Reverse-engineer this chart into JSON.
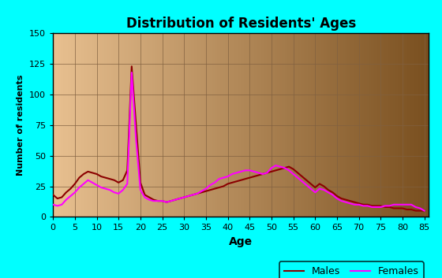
{
  "title": "Distribution of Residents' Ages",
  "xlabel": "Age",
  "ylabel": "Number of residents",
  "xlim": [
    0,
    86
  ],
  "ylim": [
    0,
    150
  ],
  "xticks": [
    0,
    5,
    10,
    15,
    20,
    25,
    30,
    35,
    40,
    45,
    50,
    55,
    60,
    65,
    70,
    75,
    80,
    85
  ],
  "yticks": [
    0,
    25,
    50,
    75,
    100,
    125,
    150
  ],
  "background_outer": "#00FFFF",
  "bg_color_left": "#E8C090",
  "bg_color_right": "#7A5020",
  "male_color": "#8B0000",
  "female_color": "#FF00FF",
  "legend_bg": "#00FFFF",
  "legend_edge": "#000000",
  "grid_color": "#806040",
  "ages": [
    0,
    1,
    2,
    3,
    4,
    5,
    6,
    7,
    8,
    9,
    10,
    11,
    12,
    13,
    14,
    15,
    16,
    17,
    18,
    19,
    20,
    21,
    22,
    23,
    24,
    25,
    26,
    27,
    28,
    29,
    30,
    31,
    32,
    33,
    34,
    35,
    36,
    37,
    38,
    39,
    40,
    41,
    42,
    43,
    44,
    45,
    46,
    47,
    48,
    49,
    50,
    51,
    52,
    53,
    54,
    55,
    56,
    57,
    58,
    59,
    60,
    61,
    62,
    63,
    64,
    65,
    66,
    67,
    68,
    69,
    70,
    71,
    72,
    73,
    74,
    75,
    76,
    77,
    78,
    79,
    80,
    81,
    82,
    83,
    84,
    85
  ],
  "values_male": [
    18,
    15,
    16,
    20,
    23,
    27,
    32,
    35,
    37,
    36,
    35,
    33,
    32,
    31,
    30,
    28,
    30,
    38,
    123,
    75,
    28,
    18,
    16,
    14,
    13,
    13,
    12,
    13,
    14,
    15,
    16,
    17,
    18,
    19,
    20,
    21,
    22,
    23,
    24,
    25,
    27,
    28,
    29,
    30,
    31,
    32,
    33,
    34,
    35,
    36,
    37,
    38,
    39,
    40,
    41,
    39,
    36,
    33,
    30,
    27,
    24,
    27,
    25,
    22,
    20,
    17,
    15,
    14,
    13,
    12,
    11,
    10,
    10,
    9,
    9,
    9,
    8,
    8,
    7,
    7,
    7,
    6,
    6,
    5,
    5,
    5
  ],
  "values_female": [
    10,
    9,
    10,
    14,
    17,
    20,
    24,
    27,
    30,
    28,
    26,
    24,
    23,
    22,
    20,
    19,
    22,
    27,
    118,
    63,
    22,
    16,
    14,
    13,
    13,
    13,
    12,
    13,
    14,
    15,
    16,
    17,
    18,
    19,
    21,
    23,
    26,
    28,
    31,
    32,
    33,
    35,
    36,
    37,
    38,
    38,
    37,
    36,
    35,
    36,
    40,
    42,
    41,
    40,
    38,
    35,
    32,
    29,
    26,
    23,
    20,
    23,
    22,
    20,
    18,
    15,
    13,
    12,
    11,
    10,
    10,
    9,
    9,
    8,
    8,
    8,
    9,
    9,
    10,
    10,
    10,
    10,
    10,
    8,
    7,
    5
  ]
}
